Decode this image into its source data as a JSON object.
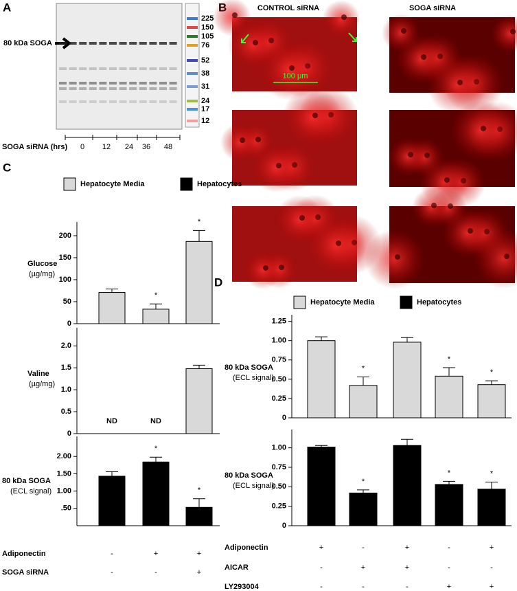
{
  "panel_labels": [
    "A",
    "B",
    "C",
    "D"
  ],
  "blot": {
    "band_label": "80 kDa SOGA",
    "ladder": [
      225,
      150,
      105,
      76,
      52,
      38,
      31,
      24,
      17,
      12
    ],
    "time_label": "SOGA siRNA (hrs)",
    "times": [
      0,
      12,
      24,
      36,
      48
    ]
  },
  "micrographs": {
    "columns": [
      "CONTROL siRNA",
      "SOGA siRNA"
    ],
    "scale_bar": "100 μm"
  },
  "chart_data": [
    {
      "type": "bar",
      "ylabel": "Glucose",
      "yunit": "(µg/mg)",
      "ylim": [
        0,
        225
      ],
      "yticks": [
        0,
        50,
        100,
        150,
        200
      ],
      "series": [
        {
          "name": "Hepatocyte Media",
          "color": "#d9d9d9",
          "values": [
            71,
            33,
            187
          ],
          "errors": [
            8,
            12,
            25
          ]
        }
      ],
      "significance": [
        null,
        "*",
        "*"
      ]
    },
    {
      "type": "bar",
      "ylabel": "Valine",
      "yunit": "(µg/mg)",
      "ylim": [
        0,
        2.35
      ],
      "yticks": [
        0,
        0.5,
        {
          "value": 1,
          "label": "1.0"
        },
        1.5,
        {
          "value": 2,
          "label": "2.0"
        }
      ],
      "series": [
        {
          "name": "Hepatocyte Media",
          "color": "#d9d9d9",
          "values": [
            null,
            null,
            1.48
          ],
          "errors": [
            null,
            null,
            0.08
          ],
          "value_labels": [
            "ND",
            "ND",
            null
          ]
        }
      ]
    },
    {
      "type": "bar",
      "ylabel": "80 kDa SOGA",
      "yunit": "(ECL signal)",
      "ylim": [
        0,
        2.5
      ],
      "yticks": [
        {
          "value": 0.5,
          "label": ".50"
        },
        {
          "value": 1,
          "label": "1.00"
        },
        {
          "value": 1.5,
          "label": "1.50"
        },
        {
          "value": 2,
          "label": "2.00"
        }
      ],
      "series": [
        {
          "name": "Hepatocytes",
          "color": "#000000",
          "values": [
            1.43,
            1.84,
            0.53
          ],
          "errors": [
            0.13,
            0.14,
            0.25
          ]
        }
      ],
      "significance": [
        null,
        "*",
        "*"
      ],
      "conditions": [
        {
          "name": "Adiponectin",
          "values": [
            "-",
            "+",
            "+"
          ]
        },
        {
          "name": "SOGA siRNA",
          "values": [
            "-",
            "-",
            "+"
          ]
        }
      ]
    },
    {
      "type": "bar",
      "ylabel": "80 kDa SOGA",
      "yunit": "(ECL signal)",
      "ylim": [
        0,
        1.3
      ],
      "yticks": [
        0,
        0.25,
        {
          "value": 0.5,
          "label": "0.50"
        },
        0.75,
        {
          "value": 1,
          "label": "1.00"
        },
        1.25
      ],
      "series": [
        {
          "name": "Hepatocyte Media",
          "color": "#d9d9d9",
          "values": [
            1.0,
            0.42,
            0.98,
            0.54,
            0.43
          ],
          "errors": [
            0.05,
            0.11,
            0.06,
            0.11,
            0.05
          ]
        }
      ],
      "significance": [
        null,
        "*",
        null,
        "*",
        "*"
      ]
    },
    {
      "type": "bar",
      "ylabel": "80 kDa SOGA",
      "yunit": "(ECL signal)",
      "ylim": [
        0,
        1.2
      ],
      "yticks": [
        0,
        0.25,
        {
          "value": 0.5,
          "label": "0.50"
        },
        0.75,
        {
          "value": 1,
          "label": "1.00"
        }
      ],
      "series": [
        {
          "name": "Hepatocytes",
          "color": "#000000",
          "values": [
            1.01,
            0.42,
            1.03,
            0.53,
            0.47
          ],
          "errors": [
            0.02,
            0.04,
            0.08,
            0.04,
            0.09
          ]
        }
      ],
      "significance": [
        null,
        "*",
        null,
        "*",
        "*"
      ],
      "conditions": [
        {
          "name": "Adiponectin",
          "values": [
            "+",
            "-",
            "+",
            "-",
            "+"
          ]
        },
        {
          "name": "AICAR",
          "values": [
            "-",
            "+",
            "+",
            "-",
            "-"
          ]
        },
        {
          "name": "LY293004",
          "values": [
            "-",
            "-",
            "-",
            "+",
            "+"
          ]
        }
      ]
    }
  ]
}
